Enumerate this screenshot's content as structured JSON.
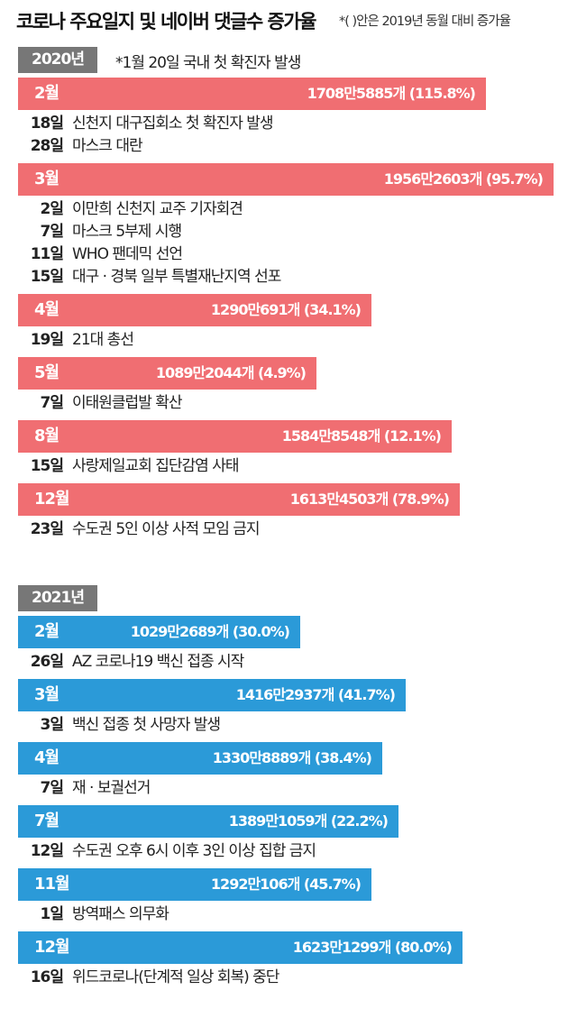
{
  "header": {
    "title": "코로나 주요일지 및 네이버 댓글수 증가율",
    "note": "*( )안은 2019년 동월 대비 증가율"
  },
  "colors": {
    "y2020": "#f06e72",
    "y2021": "#2b9ad8",
    "year_box": "#777777"
  },
  "chart_data": {
    "type": "bar",
    "title": "코로나 주요일지 및 네이버 댓글수 증가율",
    "note": "*( )안은 2019년 동월 대비 증가율",
    "orientation": "horizontal",
    "groups": [
      {
        "year": "2020년",
        "year_note": "*1월 20일  국내 첫 확진자 발생",
        "months": [
          {
            "month": "2월",
            "count": 17085885,
            "label": "1708만5885개 (115.8%)",
            "growth_pct": 115.8,
            "events": [
              {
                "day": "18일",
                "text": "신천지 대구집회소 첫 확진자 발생"
              },
              {
                "day": "28일",
                "text": "마스크 대란"
              }
            ]
          },
          {
            "month": "3월",
            "count": 19562603,
            "label": "1956만2603개 (95.7%)",
            "growth_pct": 95.7,
            "events": [
              {
                "day": "2일",
                "text": "이만희 신천지 교주 기자회견"
              },
              {
                "day": "7일",
                "text": "마스크 5부제 시행"
              },
              {
                "day": "11일",
                "text": "WHO 팬데믹 선언"
              },
              {
                "day": "15일",
                "text": "대구 · 경북 일부 특별재난지역 선포"
              }
            ]
          },
          {
            "month": "4월",
            "count": 12900691,
            "label": "1290만691개 (34.1%)",
            "growth_pct": 34.1,
            "events": [
              {
                "day": "19일",
                "text": "21대 총선"
              }
            ]
          },
          {
            "month": "5월",
            "count": 10892044,
            "label": "1089만2044개 (4.9%)",
            "growth_pct": 4.9,
            "events": [
              {
                "day": "7일",
                "text": "이태원클럽발 확산"
              }
            ]
          },
          {
            "month": "8월",
            "count": 15848548,
            "label": "1584만8548개 (12.1%)",
            "growth_pct": 12.1,
            "events": [
              {
                "day": "15일",
                "text": "사랑제일교회 집단감염 사태"
              }
            ]
          },
          {
            "month": "12월",
            "count": 16134503,
            "label": "1613만4503개 (78.9%)",
            "growth_pct": 78.9,
            "events": [
              {
                "day": "23일",
                "text": "수도권 5인 이상 사적 모임 금지"
              }
            ]
          }
        ]
      },
      {
        "year": "2021년",
        "year_note": "",
        "months": [
          {
            "month": "2월",
            "count": 10292689,
            "label": "1029만2689개 (30.0%)",
            "growth_pct": 30.0,
            "events": [
              {
                "day": "26일",
                "text": "AZ 코로나19 백신 접종 시작"
              }
            ]
          },
          {
            "month": "3월",
            "count": 14162937,
            "label": "1416만2937개 (41.7%)",
            "growth_pct": 41.7,
            "events": [
              {
                "day": "3일",
                "text": "백신 접종 첫 사망자 발생"
              }
            ]
          },
          {
            "month": "4월",
            "count": 13308889,
            "label": "1330만8889개 (38.4%)",
            "growth_pct": 38.4,
            "events": [
              {
                "day": "7일",
                "text": "재 · 보궐선거"
              }
            ]
          },
          {
            "month": "7월",
            "count": 13891059,
            "label": "1389만1059개 (22.2%)",
            "growth_pct": 22.2,
            "events": [
              {
                "day": "12일",
                "text": "수도권 오후 6시 이후 3인 이상 집합 금지"
              }
            ]
          },
          {
            "month": "11월",
            "count": 12920106,
            "label": "1292만106개 (45.7%)",
            "growth_pct": 45.7,
            "events": [
              {
                "day": "1일",
                "text": "방역패스 의무화"
              }
            ]
          },
          {
            "month": "12월",
            "count": 16231299,
            "label": "1623만1299개 (80.0%)",
            "growth_pct": 80.0,
            "events": [
              {
                "day": "16일",
                "text": "위드코로나(단계적 일상 회복) 중단"
              }
            ]
          }
        ]
      }
    ]
  }
}
